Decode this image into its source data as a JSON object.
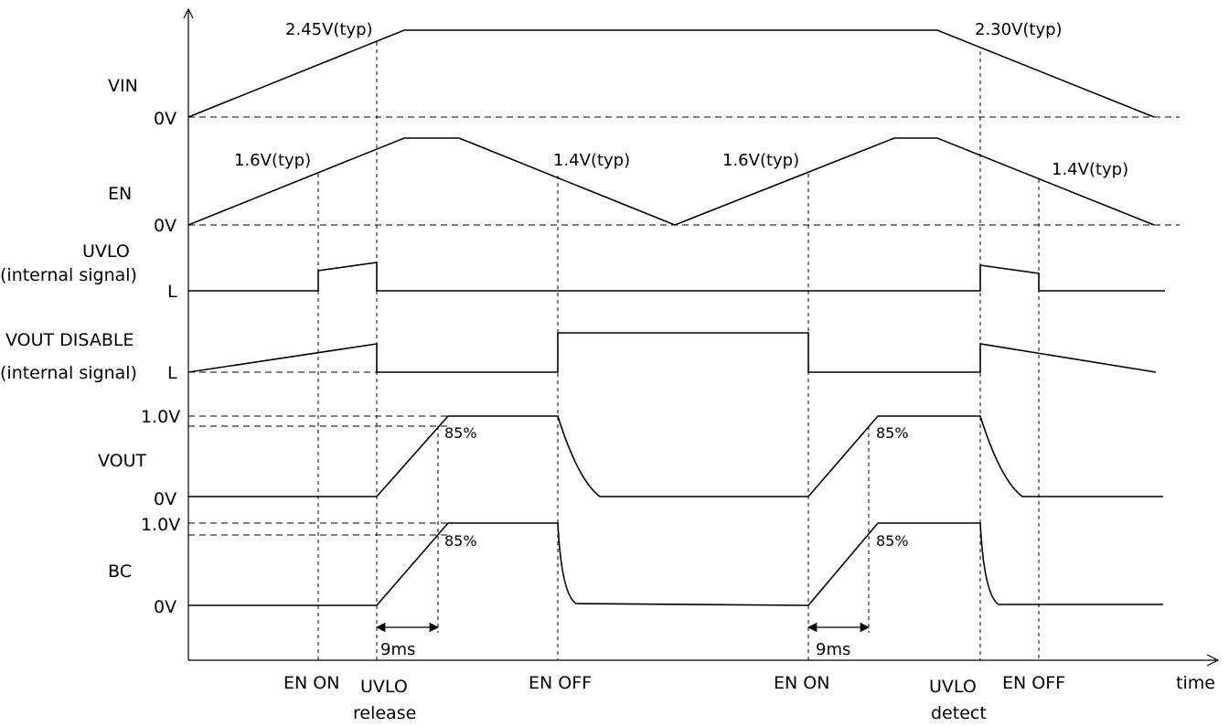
{
  "signals": {
    "vin": {
      "name": "VIN",
      "zero": "0V",
      "rise_thr": "2.45V(typ)",
      "fall_thr": "2.30V(typ)"
    },
    "en": {
      "name": "EN",
      "zero": "0V",
      "thr1": "1.6V(typ)",
      "thr2": "1.4V(typ)",
      "thr3": "1.6V(typ)",
      "thr4": "1.4V(typ)"
    },
    "uvlo": {
      "name": "UVLO",
      "sub": "(internal signal)",
      "level": "L"
    },
    "vout_disable": {
      "name": "VOUT DISABLE",
      "sub": "(internal signal)",
      "level": "L"
    },
    "vout": {
      "name": "VOUT",
      "top": "1.0V",
      "zero": "0V",
      "pct1": "85%",
      "pct2": "85%"
    },
    "bc": {
      "name": "BC",
      "top": "1.0V",
      "zero": "0V",
      "pct1": "85%",
      "pct2": "85%"
    }
  },
  "timing": {
    "delay1": "9ms",
    "delay2": "9ms"
  },
  "events": {
    "en_on_1": "EN ON",
    "uvlo_release_1": "UVLO",
    "uvlo_release_2": "release",
    "en_off_1": "EN OFF",
    "en_on_2": "EN ON",
    "uvlo_detect_1": "UVLO",
    "uvlo_detect_2": "detect",
    "en_off_2": "EN OFF"
  },
  "axis": {
    "x_label": "time"
  }
}
